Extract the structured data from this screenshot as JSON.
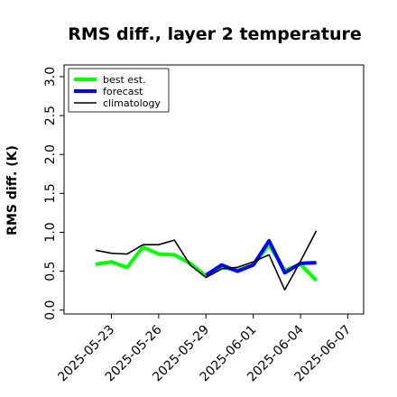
{
  "chart_data": {
    "type": "line",
    "title": "RMS diff., layer 2 temperature",
    "xlabel": "",
    "ylabel": "RMS diff. (K)",
    "ylim": [
      -0.05,
      3.15
    ],
    "yticks": [
      0.0,
      0.5,
      1.0,
      1.5,
      2.0,
      2.5,
      3.0
    ],
    "ytick_labels": [
      "0.0",
      "0.5",
      "1.0",
      "1.5",
      "2.0",
      "2.5",
      "3.0"
    ],
    "x": [
      "2025-05-22",
      "2025-05-23",
      "2025-05-24",
      "2025-05-25",
      "2025-05-26",
      "2025-05-27",
      "2025-05-28",
      "2025-05-29",
      "2025-05-30",
      "2025-05-31",
      "2025-06-01",
      "2025-06-02",
      "2025-06-03",
      "2025-06-04",
      "2025-06-05"
    ],
    "xlim": [
      "2025-05-20",
      "2025-06-08"
    ],
    "xticks": [
      "2025-05-23",
      "2025-05-26",
      "2025-05-29",
      "2025-06-01",
      "2025-06-04",
      "2025-06-07"
    ],
    "xtick_colors": [
      "#000000",
      "#000000",
      "#008000",
      "#000000",
      "#000000",
      "#000000"
    ],
    "legend_position": "top-left",
    "grid": false,
    "series": [
      {
        "name": "best est.",
        "color": "#00ff00",
        "width": 4,
        "values": [
          0.59,
          0.62,
          0.55,
          0.81,
          0.72,
          0.71,
          0.6,
          0.44,
          0.55,
          0.51,
          0.58,
          0.84,
          0.51,
          0.59,
          0.38
        ]
      },
      {
        "name": "forecast",
        "color": "#0000ff",
        "width": 4,
        "values": [
          null,
          null,
          null,
          null,
          null,
          null,
          null,
          0.45,
          0.58,
          0.5,
          0.58,
          0.89,
          0.48,
          0.6,
          0.61
        ]
      },
      {
        "name": "climatology",
        "color": "#000000",
        "width": 1.6,
        "values": [
          0.77,
          0.73,
          0.72,
          0.84,
          0.84,
          0.9,
          0.58,
          0.42,
          0.53,
          0.55,
          0.62,
          0.71,
          0.26,
          0.63,
          1.02
        ]
      }
    ]
  }
}
